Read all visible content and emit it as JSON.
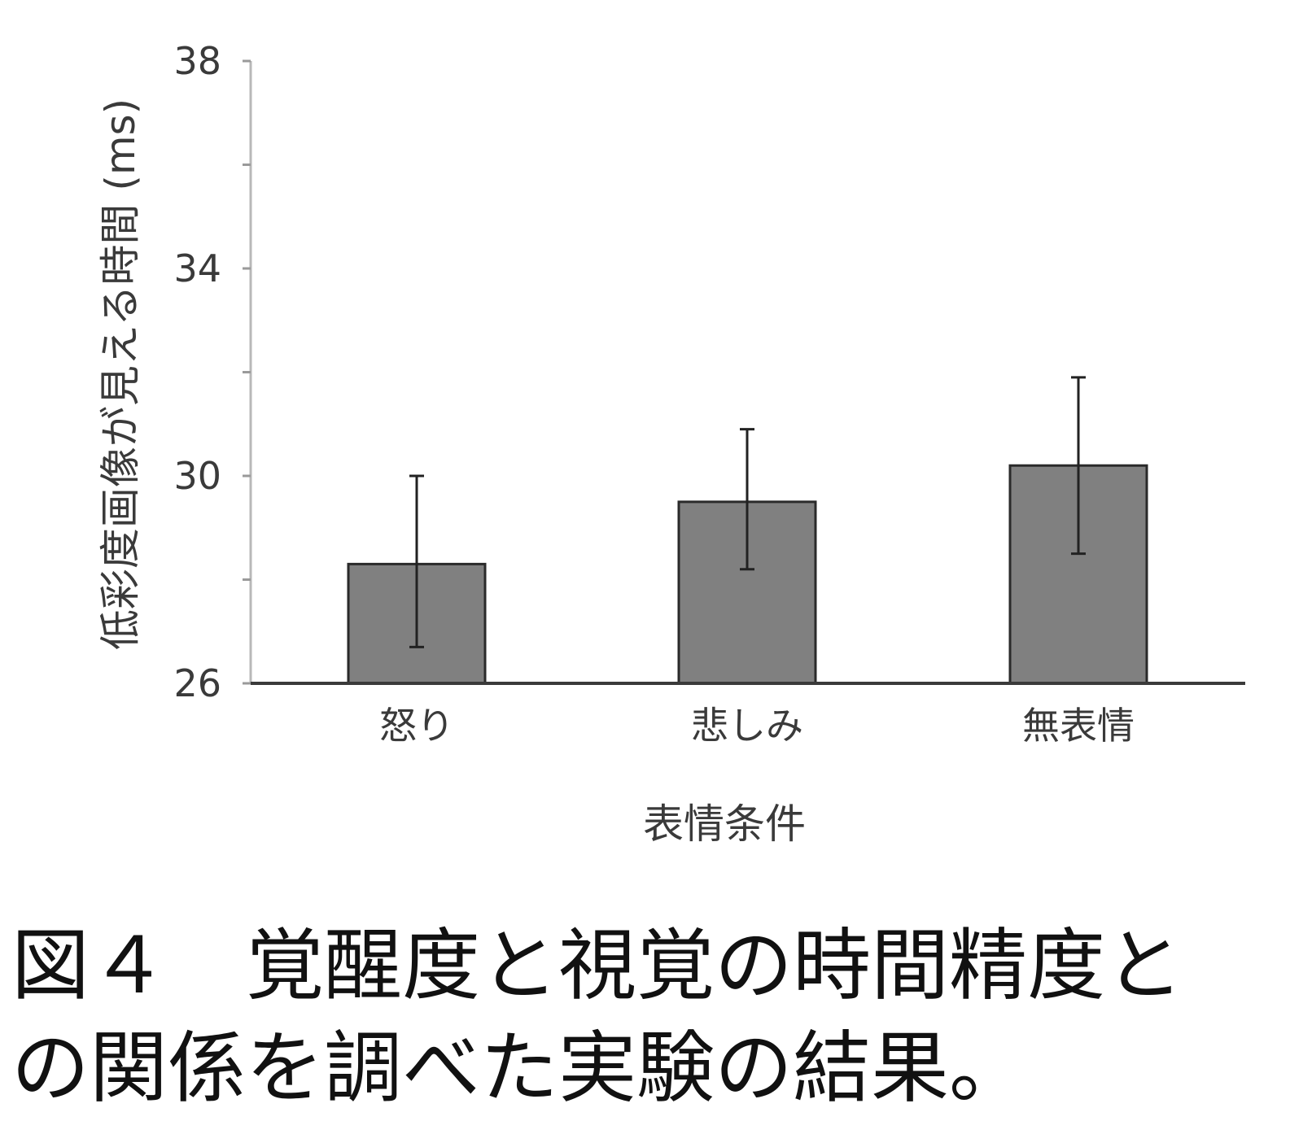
{
  "chart_data": {
    "type": "bar",
    "categories": [
      "怒り",
      "悲しみ",
      "無表情"
    ],
    "values": [
      28.3,
      29.5,
      30.2
    ],
    "error_high": [
      30.0,
      30.9,
      31.9
    ],
    "error_low": [
      26.7,
      28.2,
      28.5
    ],
    "ylim": [
      26,
      38
    ],
    "yticks": [
      26,
      30,
      34,
      38
    ],
    "yminor": [
      28,
      32,
      36
    ],
    "xlabel": "表情条件",
    "ylabel": "低彩度画像が見える時間 (ms)",
    "bar_color": "#808080",
    "bar_edge_color": "#2a2a2a",
    "axis_color": "#3a3a3a",
    "grid": false
  },
  "caption": {
    "line1": "図４　覚醒度と視覚の時間精度と",
    "line2": "の関係を調べた実験の結果。"
  }
}
